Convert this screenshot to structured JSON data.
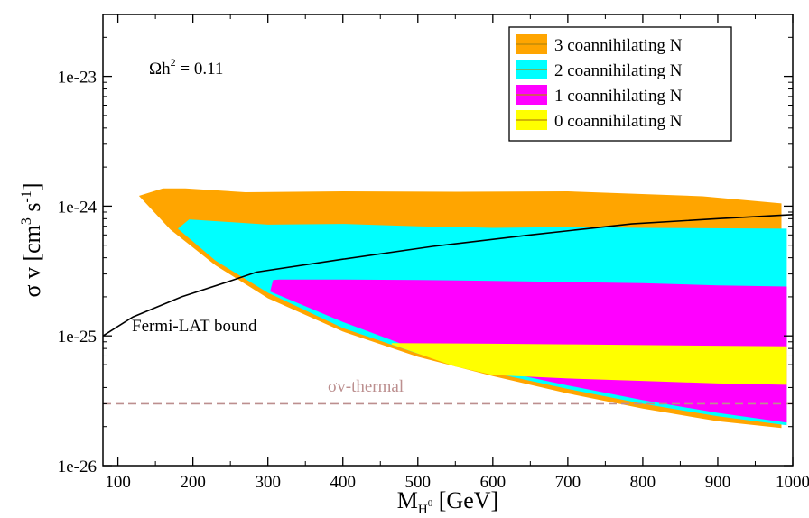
{
  "chart_data": {
    "type": "area",
    "xlabel": "M",
    "xlabel_sub": "H",
    "xlabel_sup": "0",
    "xlabel_unit": "[GeV]",
    "ylabel": "σ v [cm3 s-1]",
    "ylabel_main": "σ v [cm",
    "ylabel_sup1": "3",
    "ylabel_mid": " s",
    "ylabel_sup2": "-1",
    "ylabel_end": "]",
    "xlim": [
      80,
      1000
    ],
    "ylim": [
      1e-26,
      3e-23
    ],
    "yscale": "log",
    "x_ticks": [
      100,
      200,
      300,
      400,
      500,
      600,
      700,
      800,
      900,
      1000
    ],
    "x_tick_labels": [
      "100",
      "200",
      "300",
      "400",
      "500",
      "600",
      "700",
      "800",
      "900",
      "1000"
    ],
    "y_ticks": [
      1e-26,
      1e-25,
      1e-24,
      1e-23
    ],
    "y_tick_labels": [
      "1e-26",
      "1e-25",
      "1e-24",
      "1e-23"
    ],
    "annotation_omega_prefix": "Ωh",
    "annotation_omega_sup": "2",
    "annotation_omega_suffix": " = 0.11",
    "legend_position": "top-right",
    "legend": [
      {
        "label": "3 coannihilating N",
        "color": "#ffa500"
      },
      {
        "label": "2 coannihilating N",
        "color": "#00ffff"
      },
      {
        "label": "1 coannihilating N",
        "color": "#ff00ff"
      },
      {
        "label": "0 coannihilating N",
        "color": "#ffff00"
      }
    ],
    "regions": [
      {
        "name": "3 coannihilating N",
        "color": "#ffa500",
        "polygon": [
          [
            128,
            1.2e-24
          ],
          [
            160,
            1.37e-24
          ],
          [
            190,
            1.37e-24
          ],
          [
            270,
            1.28e-24
          ],
          [
            400,
            1.3e-24
          ],
          [
            550,
            1.29e-24
          ],
          [
            700,
            1.3e-24
          ],
          [
            880,
            1.19e-24
          ],
          [
            985,
            1.05e-24
          ],
          [
            985,
            1.95e-26
          ],
          [
            900,
            2.2e-26
          ],
          [
            800,
            2.75e-26
          ],
          [
            700,
            3.6e-26
          ],
          [
            600,
            4.9e-26
          ],
          [
            500,
            6.9e-26
          ],
          [
            400,
            1.08e-25
          ],
          [
            300,
            1.95e-25
          ],
          [
            230,
            3.5e-25
          ],
          [
            170,
            6.6e-25
          ]
        ]
      },
      {
        "name": "2 coannihilating N",
        "color": "#00ffff",
        "polygon": [
          [
            180,
            6.7e-25
          ],
          [
            195,
            7.9e-25
          ],
          [
            300,
            7.2e-25
          ],
          [
            400,
            7.3e-25
          ],
          [
            500,
            7e-25
          ],
          [
            600,
            6.8e-25
          ],
          [
            700,
            6.9e-25
          ],
          [
            800,
            6.8e-25
          ],
          [
            992,
            6.7e-25
          ],
          [
            992,
            2.05e-26
          ],
          [
            900,
            2.4e-26
          ],
          [
            800,
            3e-26
          ],
          [
            700,
            3.9e-26
          ],
          [
            600,
            5.2e-26
          ],
          [
            500,
            7.3e-26
          ],
          [
            400,
            1.15e-25
          ],
          [
            300,
            2.15e-25
          ],
          [
            230,
            3.8e-25
          ]
        ]
      },
      {
        "name": "1 coannihilating N",
        "color": "#ff00ff",
        "polygon": [
          [
            307,
            2.7e-25
          ],
          [
            315,
            2.72e-25
          ],
          [
            400,
            2.72e-25
          ],
          [
            500,
            2.7e-25
          ],
          [
            600,
            2.65e-25
          ],
          [
            700,
            2.6e-25
          ],
          [
            800,
            2.55e-25
          ],
          [
            900,
            2.45e-25
          ],
          [
            992,
            2.4e-25
          ],
          [
            992,
            2.15e-26
          ],
          [
            900,
            2.55e-26
          ],
          [
            800,
            3.2e-26
          ],
          [
            700,
            4.15e-26
          ],
          [
            600,
            5.5e-26
          ],
          [
            500,
            7.8e-26
          ],
          [
            400,
            1.28e-25
          ],
          [
            303,
            2.2e-25
          ]
        ]
      },
      {
        "name": "0 coannihilating N",
        "color": "#ffff00",
        "polygon": [
          [
            465,
            8.8e-26
          ],
          [
            600,
            8.7e-26
          ],
          [
            700,
            8.6e-26
          ],
          [
            800,
            8.5e-26
          ],
          [
            992,
            8.3e-26
          ],
          [
            992,
            4.2e-26
          ],
          [
            900,
            4.3e-26
          ],
          [
            800,
            4.5e-26
          ],
          [
            700,
            4.7e-26
          ],
          [
            600,
            5e-26
          ],
          [
            550,
            5.8e-26
          ],
          [
            465,
            8.6e-26
          ]
        ]
      }
    ],
    "lines": [
      {
        "name": "Fermi-LAT bound",
        "color": "#000000",
        "style": "solid",
        "points": [
          [
            80,
            1e-25
          ],
          [
            120,
            1.4e-25
          ],
          [
            185,
            2e-25
          ],
          [
            250,
            2.65e-25
          ],
          [
            285,
            3.1e-25
          ],
          [
            400,
            3.9e-25
          ],
          [
            520,
            4.9e-25
          ],
          [
            650,
            6e-25
          ],
          [
            785,
            7.3e-25
          ],
          [
            900,
            8e-25
          ],
          [
            1000,
            8.6e-25
          ]
        ]
      },
      {
        "name": "σv-thermal",
        "color": "#bc8f8f",
        "style": "dashed",
        "points": [
          [
            80,
            3e-26
          ],
          [
            1000,
            3e-26
          ]
        ]
      }
    ],
    "line_labels": [
      {
        "text": "Fermi-LAT bound",
        "color": "#000000"
      },
      {
        "text": "σv-thermal",
        "color": "#bc8f8f"
      }
    ]
  }
}
